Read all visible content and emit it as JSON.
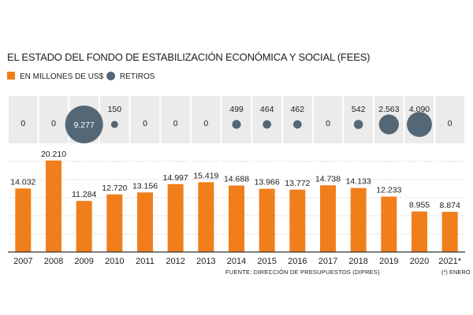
{
  "title": "EL ESTADO DEL FONDO DE ESTABILIZACIÓN ECONÓMICA Y SOCIAL (FEES)",
  "legend": {
    "series1": "EN MILLONES DE US$",
    "series2": "RETIROS"
  },
  "colors": {
    "bar": "#f07f1b",
    "bubble": "#546776",
    "band": "#ebebeb",
    "grid": "#d0d0d0",
    "axis": "#333333"
  },
  "source": "FUENTE: DIRECCIÓN DE PRESUPUESTOS (DIPRES)",
  "note": "(*) ENERO",
  "chart_data": {
    "type": "bar",
    "title": "EL ESTADO DEL FONDO DE ESTABILIZACIÓN ECONÓMICA Y SOCIAL (FEES)",
    "categories": [
      "2007",
      "2008",
      "2009",
      "2010",
      "2011",
      "2012",
      "2013",
      "2014",
      "2015",
      "2016",
      "2017",
      "2018",
      "2019",
      "2020",
      "2021*"
    ],
    "series": [
      {
        "name": "EN MILLONES DE US$",
        "values": [
          14032,
          20210,
          11284,
          12720,
          13156,
          14997,
          15419,
          14688,
          13966,
          13772,
          14738,
          14133,
          12233,
          8955,
          8874
        ],
        "labels": [
          "14.032",
          "20.210",
          "11.284",
          "12.720",
          "13.156",
          "14.997",
          "15.419",
          "14.688",
          "13.966",
          "13.772",
          "14.738",
          "14.133",
          "12.233",
          "8.955",
          "8.874"
        ]
      },
      {
        "name": "RETIROS",
        "values": [
          0,
          0,
          9277,
          150,
          0,
          0,
          0,
          499,
          464,
          462,
          0,
          542,
          2563,
          4090,
          0
        ],
        "labels": [
          "0",
          "0",
          "9.277",
          "150",
          "0",
          "0",
          "0",
          "499",
          "464",
          "462",
          "0",
          "542",
          "2.563",
          "4.090",
          "0"
        ]
      }
    ],
    "ylim": [
      0,
      24000
    ],
    "xlabel": "",
    "ylabel": ""
  }
}
